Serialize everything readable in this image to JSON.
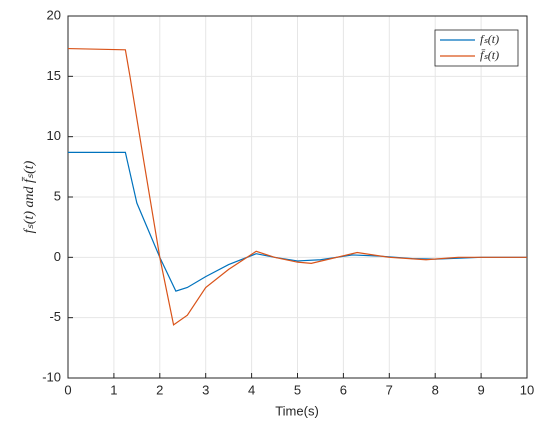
{
  "chart_data": {
    "type": "line",
    "xlabel": "Time(s)",
    "ylabel": "fₛ(t) and f̄ₛ(t)",
    "xlim": [
      0,
      10
    ],
    "xticks": [
      0,
      1,
      2,
      3,
      4,
      5,
      6,
      7,
      8,
      9,
      10
    ],
    "ylim": [
      -10,
      20
    ],
    "yticks": [
      -10,
      -5,
      0,
      5,
      10,
      15,
      20
    ],
    "grid": true,
    "legend": "upper right",
    "series": [
      {
        "name": "fₛ(t)",
        "color": "#0072bd",
        "x": [
          0,
          1.25,
          1.5,
          2,
          2.35,
          2.6,
          3,
          3.5,
          4.1,
          4.5,
          5,
          5.5,
          6.2,
          6.8,
          7.5,
          8,
          9,
          10
        ],
        "values": [
          8.7,
          8.7,
          4.5,
          0,
          -2.8,
          -2.5,
          -1.6,
          -0.6,
          0.3,
          0,
          -0.3,
          -0.2,
          0.2,
          0.1,
          -0.1,
          -0.15,
          0,
          0
        ]
      },
      {
        "name": "f̄ₛ(t)",
        "color": "#d95319",
        "x": [
          0,
          1.25,
          1.35,
          1.65,
          2,
          2.3,
          2.6,
          3,
          3.5,
          4.1,
          4.5,
          5,
          5.3,
          6.3,
          7,
          7.8,
          8.5,
          10
        ],
        "values": [
          17.3,
          17.2,
          15,
          8,
          0,
          -5.6,
          -4.8,
          -2.5,
          -1,
          0.5,
          0,
          -0.4,
          -0.5,
          0.4,
          0,
          -0.2,
          0,
          0
        ]
      }
    ]
  }
}
